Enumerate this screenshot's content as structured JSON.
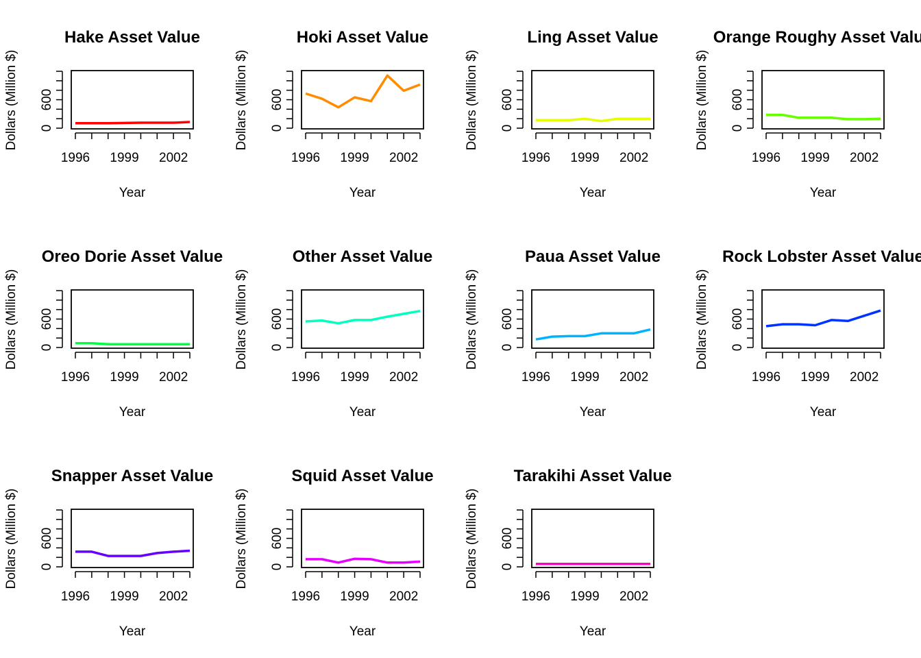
{
  "chart_data": [
    {
      "type": "line",
      "title": "Hake Asset Value",
      "xlabel": "Year",
      "ylabel": "Dollars (Million $)",
      "color": "#FF0000",
      "x": [
        1996,
        1997,
        1998,
        1999,
        2000,
        2001,
        2002,
        2003
      ],
      "values": [
        105,
        105,
        105,
        110,
        115,
        115,
        115,
        130
      ],
      "xticks": [
        1996,
        1997,
        1998,
        1999,
        2000,
        2001,
        2002,
        2003
      ],
      "xtick_labels": [
        "1996",
        "",
        "",
        "1999",
        "",
        "",
        "2002",
        ""
      ],
      "yticks": [
        0,
        200,
        400,
        600,
        800,
        1000,
        1200
      ],
      "ytick_labels": [
        "0",
        "",
        "",
        "600",
        "",
        "",
        ""
      ],
      "xlim": [
        1996,
        2003
      ],
      "ylim": [
        0,
        1200
      ]
    },
    {
      "type": "line",
      "title": "Hoki Asset Value",
      "xlabel": "Year",
      "ylabel": "Dollars (Million $)",
      "color": "#FF8C00",
      "x": [
        1996,
        1997,
        1998,
        1999,
        2000,
        2001,
        2002,
        2003
      ],
      "values": [
        730,
        620,
        440,
        650,
        570,
        1110,
        790,
        920
      ],
      "xticks": [
        1996,
        1997,
        1998,
        1999,
        2000,
        2001,
        2002,
        2003
      ],
      "xtick_labels": [
        "1996",
        "",
        "",
        "1999",
        "",
        "",
        "2002",
        ""
      ],
      "yticks": [
        0,
        200,
        400,
        600,
        800,
        1000,
        1200
      ],
      "ytick_labels": [
        "0",
        "",
        "",
        "600",
        "",
        "",
        ""
      ],
      "xlim": [
        1996,
        2003
      ],
      "ylim": [
        0,
        1200
      ]
    },
    {
      "type": "line",
      "title": "Ling Asset Value",
      "xlabel": "Year",
      "ylabel": "Dollars (Million $)",
      "color": "#E6FF00",
      "x": [
        1996,
        1997,
        1998,
        1999,
        2000,
        2001,
        2002,
        2003
      ],
      "values": [
        170,
        170,
        170,
        200,
        150,
        200,
        200,
        200
      ],
      "xticks": [
        1996,
        1997,
        1998,
        1999,
        2000,
        2001,
        2002,
        2003
      ],
      "xtick_labels": [
        "1996",
        "",
        "",
        "1999",
        "",
        "",
        "2002",
        ""
      ],
      "yticks": [
        0,
        200,
        400,
        600,
        800,
        1000,
        1200
      ],
      "ytick_labels": [
        "0",
        "",
        "",
        "600",
        "",
        "",
        ""
      ],
      "xlim": [
        1996,
        2003
      ],
      "ylim": [
        0,
        1200
      ]
    },
    {
      "type": "line",
      "title": "Orange Roughy Asset Value",
      "xlabel": "Year",
      "ylabel": "Dollars (Million $)",
      "color": "#66FF00",
      "x": [
        1996,
        1997,
        1998,
        1999,
        2000,
        2001,
        2002,
        2003
      ],
      "values": [
        280,
        280,
        220,
        220,
        220,
        190,
        190,
        200
      ],
      "xticks": [
        1996,
        1997,
        1998,
        1999,
        2000,
        2001,
        2002,
        2003
      ],
      "xtick_labels": [
        "1996",
        "",
        "",
        "1999",
        "",
        "",
        "2002",
        ""
      ],
      "yticks": [
        0,
        200,
        400,
        600,
        800,
        1000,
        1200
      ],
      "ytick_labels": [
        "0",
        "",
        "",
        "600",
        "",
        "",
        ""
      ],
      "xlim": [
        1996,
        2003
      ],
      "ylim": [
        0,
        1200
      ]
    },
    {
      "type": "line",
      "title": "Oreo Dorie Asset Value",
      "xlabel": "Year",
      "ylabel": "Dollars (Million $)",
      "color": "#00FF40",
      "x": [
        1996,
        1997,
        1998,
        1999,
        2000,
        2001,
        2002,
        2003
      ],
      "values": [
        90,
        90,
        70,
        70,
        70,
        70,
        70,
        70
      ],
      "xticks": [
        1996,
        1997,
        1998,
        1999,
        2000,
        2001,
        2002,
        2003
      ],
      "xtick_labels": [
        "1996",
        "",
        "",
        "1999",
        "",
        "",
        "2002",
        ""
      ],
      "yticks": [
        0,
        200,
        400,
        600,
        800,
        1000,
        1200
      ],
      "ytick_labels": [
        "0",
        "",
        "",
        "600",
        "",
        "",
        ""
      ],
      "xlim": [
        1996,
        2003
      ],
      "ylim": [
        0,
        1200
      ]
    },
    {
      "type": "line",
      "title": "Other Asset Value",
      "xlabel": "Year",
      "ylabel": "Dollars (Million $)",
      "color": "#00FFC0",
      "x": [
        1996,
        1997,
        1998,
        1999,
        2000,
        2001,
        2002,
        2003
      ],
      "values": [
        550,
        570,
        510,
        580,
        580,
        650,
        710,
        770
      ],
      "xticks": [
        1996,
        1997,
        1998,
        1999,
        2000,
        2001,
        2002,
        2003
      ],
      "xtick_labels": [
        "1996",
        "",
        "",
        "1999",
        "",
        "",
        "2002",
        ""
      ],
      "yticks": [
        0,
        200,
        400,
        600,
        800,
        1000,
        1200
      ],
      "ytick_labels": [
        "0",
        "",
        "",
        "600",
        "",
        "",
        ""
      ],
      "xlim": [
        1996,
        2003
      ],
      "ylim": [
        0,
        1200
      ]
    },
    {
      "type": "line",
      "title": "Paua Asset Value",
      "xlabel": "Year",
      "ylabel": "Dollars (Million $)",
      "color": "#00B3FF",
      "x": [
        1996,
        1997,
        1998,
        1999,
        2000,
        2001,
        2002,
        2003
      ],
      "values": [
        170,
        230,
        240,
        240,
        300,
        300,
        300,
        380
      ],
      "xticks": [
        1996,
        1997,
        1998,
        1999,
        2000,
        2001,
        2002,
        2003
      ],
      "xtick_labels": [
        "1996",
        "",
        "",
        "1999",
        "",
        "",
        "2002",
        ""
      ],
      "yticks": [
        0,
        200,
        400,
        600,
        800,
        1000,
        1200
      ],
      "ytick_labels": [
        "0",
        "",
        "",
        "600",
        "",
        "",
        ""
      ],
      "xlim": [
        1996,
        2003
      ],
      "ylim": [
        0,
        1200
      ]
    },
    {
      "type": "line",
      "title": "Rock Lobster Asset Value",
      "xlabel": "Year",
      "ylabel": "Dollars (Million $)",
      "color": "#0033FF",
      "x": [
        1996,
        1997,
        1998,
        1999,
        2000,
        2001,
        2002,
        2003
      ],
      "values": [
        450,
        490,
        490,
        470,
        580,
        560,
        670,
        780
      ],
      "xticks": [
        1996,
        1997,
        1998,
        1999,
        2000,
        2001,
        2002,
        2003
      ],
      "xtick_labels": [
        "1996",
        "",
        "",
        "1999",
        "",
        "",
        "2002",
        ""
      ],
      "yticks": [
        0,
        200,
        400,
        600,
        800,
        1000,
        1200
      ],
      "ytick_labels": [
        "0",
        "",
        "",
        "600",
        "",
        "",
        ""
      ],
      "xlim": [
        1996,
        2003
      ],
      "ylim": [
        0,
        1200
      ]
    },
    {
      "type": "line",
      "title": "Snapper Asset Value",
      "xlabel": "Year",
      "ylabel": "Dollars (Million $)",
      "color": "#6600FF",
      "x": [
        1996,
        1997,
        1998,
        1999,
        2000,
        2001,
        2002,
        2003
      ],
      "values": [
        320,
        320,
        230,
        230,
        230,
        290,
        320,
        340
      ],
      "xticks": [
        1996,
        1997,
        1998,
        1999,
        2000,
        2001,
        2002,
        2003
      ],
      "xtick_labels": [
        "1996",
        "",
        "",
        "1999",
        "",
        "",
        "2002",
        ""
      ],
      "yticks": [
        0,
        200,
        400,
        600,
        800,
        1000,
        1200
      ],
      "ytick_labels": [
        "0",
        "",
        "",
        "600",
        "",
        "",
        ""
      ],
      "xlim": [
        1996,
        2003
      ],
      "ylim": [
        0,
        1200
      ]
    },
    {
      "type": "line",
      "title": "Squid Asset Value",
      "xlabel": "Year",
      "ylabel": "Dollars (Million $)",
      "color": "#E600FF",
      "x": [
        1996,
        1997,
        1998,
        1999,
        2000,
        2001,
        2002,
        2003
      ],
      "values": [
        160,
        160,
        90,
        170,
        160,
        90,
        90,
        110
      ],
      "xticks": [
        1996,
        1997,
        1998,
        1999,
        2000,
        2001,
        2002,
        2003
      ],
      "xtick_labels": [
        "1996",
        "",
        "",
        "1999",
        "",
        "",
        "2002",
        ""
      ],
      "yticks": [
        0,
        200,
        400,
        600,
        800,
        1000,
        1200
      ],
      "ytick_labels": [
        "0",
        "",
        "",
        "600",
        "",
        "",
        ""
      ],
      "xlim": [
        1996,
        2003
      ],
      "ylim": [
        0,
        1200
      ]
    },
    {
      "type": "line",
      "title": "Tarakihi Asset Value",
      "xlabel": "Year",
      "ylabel": "Dollars (Million $)",
      "color": "#FF00BF",
      "x": [
        1996,
        1997,
        1998,
        1999,
        2000,
        2001,
        2002,
        2003
      ],
      "values": [
        60,
        60,
        60,
        60,
        60,
        60,
        60,
        60
      ],
      "xticks": [
        1996,
        1997,
        1998,
        1999,
        2000,
        2001,
        2002,
        2003
      ],
      "xtick_labels": [
        "1996",
        "",
        "",
        "1999",
        "",
        "",
        "2002",
        ""
      ],
      "yticks": [
        0,
        200,
        400,
        600,
        800,
        1000,
        1200
      ],
      "ytick_labels": [
        "0",
        "",
        "",
        "600",
        "",
        "",
        ""
      ],
      "xlim": [
        1996,
        2003
      ],
      "ylim": [
        0,
        1200
      ]
    }
  ]
}
